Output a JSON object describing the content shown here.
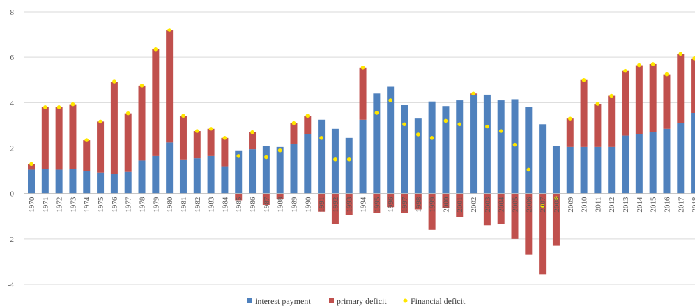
{
  "colors": {
    "interest": "#4f81bd",
    "primary": "#c0504d",
    "financial": "#ffe600",
    "grid": "#d9d9d9",
    "axis": "#bfbfbf",
    "text": "#595959"
  },
  "chart_data": {
    "type": "bar",
    "stacked": true,
    "title": "",
    "xlabel": "",
    "ylabel": "",
    "ylim": [
      -4,
      8
    ],
    "yticks": [
      8,
      6,
      4,
      2,
      0,
      -2,
      -4
    ],
    "grid": true,
    "legend_position": "bottom",
    "categories": [
      "1970",
      "1971",
      "1972",
      "1973",
      "1974",
      "1975",
      "1976",
      "1977",
      "1978",
      "1979",
      "1980",
      "1981",
      "1982",
      "1983",
      "1984",
      "1985",
      "1986",
      "1987",
      "1988",
      "1989",
      "1990",
      "1991",
      "1992",
      "1993",
      "1994",
      "1995",
      "1996",
      "1997",
      "1998",
      "1999",
      "2000",
      "2001",
      "2002",
      "2003",
      "2004",
      "2005",
      "2006",
      "2007",
      "2008",
      "2009",
      "2010",
      "2011",
      "2012",
      "2013",
      "2014",
      "2015",
      "2016",
      "2017",
      "2018"
    ],
    "series": [
      {
        "name": "interest payment",
        "type": "bar",
        "values": [
          1.05,
          1.08,
          1.05,
          1.08,
          1.0,
          0.92,
          0.88,
          0.95,
          1.45,
          1.65,
          2.25,
          1.5,
          1.55,
          1.65,
          1.2,
          1.9,
          1.95,
          2.1,
          2.05,
          2.2,
          2.6,
          3.25,
          2.85,
          2.45,
          3.25,
          4.4,
          4.7,
          3.9,
          3.3,
          4.05,
          3.85,
          4.1,
          4.35,
          4.35,
          4.1,
          4.15,
          3.8,
          3.05,
          2.1,
          2.05,
          2.05,
          2.05,
          2.05,
          2.55,
          2.6,
          2.7,
          2.85,
          3.1,
          3.55
        ]
      },
      {
        "name": "primary deficit",
        "type": "bar",
        "values": [
          0.25,
          2.72,
          2.75,
          2.85,
          1.35,
          2.25,
          4.05,
          2.58,
          3.3,
          4.7,
          4.95,
          1.92,
          1.2,
          1.2,
          1.25,
          -0.3,
          0.75,
          -0.5,
          -0.25,
          0.9,
          0.82,
          -0.8,
          -1.35,
          -0.95,
          2.3,
          -0.85,
          -0.6,
          -0.85,
          -0.7,
          -1.6,
          -0.65,
          -1.05,
          0.05,
          -1.4,
          -1.35,
          -2.0,
          -2.7,
          -3.55,
          -2.3,
          1.25,
          2.95,
          1.9,
          2.25,
          2.85,
          3.05,
          3.0,
          2.4,
          3.05,
          2.4
        ]
      },
      {
        "name": "Financial deficit",
        "type": "scatter",
        "values": [
          1.3,
          3.8,
          3.8,
          3.93,
          2.35,
          3.17,
          4.93,
          3.53,
          4.75,
          6.35,
          7.2,
          3.42,
          2.75,
          2.85,
          2.45,
          1.65,
          2.7,
          1.6,
          1.9,
          3.1,
          3.42,
          2.45,
          1.5,
          1.5,
          5.55,
          3.55,
          4.1,
          3.05,
          2.6,
          2.45,
          3.2,
          3.05,
          4.4,
          2.95,
          2.75,
          2.15,
          1.05,
          -0.55,
          -0.2,
          3.3,
          5.0,
          3.95,
          4.3,
          5.4,
          5.65,
          5.7,
          5.25,
          6.15,
          5.95
        ]
      }
    ]
  }
}
